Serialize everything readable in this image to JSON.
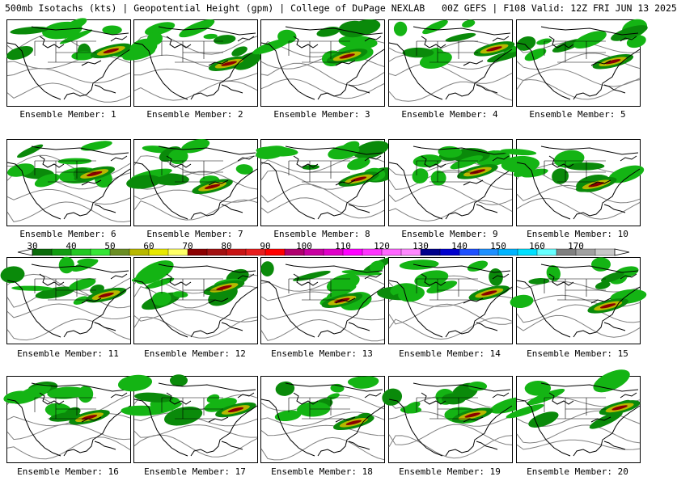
{
  "header": {
    "title": "500mb Isotachs (kts) | Geopotential Height (gpm) | College of DuPage NEXLAB   00Z GEFS | F108 Valid: 12Z FRI JUN 13 2025"
  },
  "panels": [
    {
      "label": "Ensemble Member: 1"
    },
    {
      "label": "Ensemble Member: 2"
    },
    {
      "label": "Ensemble Member: 3"
    },
    {
      "label": "Ensemble Member: 4"
    },
    {
      "label": "Ensemble Member: 5"
    },
    {
      "label": "Ensemble Member: 6"
    },
    {
      "label": "Ensemble Member: 7"
    },
    {
      "label": "Ensemble Member: 8"
    },
    {
      "label": "Ensemble Member: 9"
    },
    {
      "label": "Ensemble Member: 10"
    },
    {
      "label": "Ensemble Member: 11"
    },
    {
      "label": "Ensemble Member: 12"
    },
    {
      "label": "Ensemble Member: 13"
    },
    {
      "label": "Ensemble Member: 14"
    },
    {
      "label": "Ensemble Member: 15"
    },
    {
      "label": "Ensemble Member: 16"
    },
    {
      "label": "Ensemble Member: 17"
    },
    {
      "label": "Ensemble Member: 18"
    },
    {
      "label": "Ensemble Member: 19"
    },
    {
      "label": "Ensemble Member: 20"
    }
  ],
  "colorbar": {
    "labels": [
      "30",
      "40",
      "50",
      "60",
      "70",
      "80",
      "90",
      "100",
      "110",
      "120",
      "130",
      "140",
      "150",
      "160",
      "170"
    ],
    "colors": [
      "#0b6b0b",
      "#129c12",
      "#22c822",
      "#36e636",
      "#6b8e23",
      "#b8b800",
      "#e8e800",
      "#ffff66",
      "#8b0000",
      "#a31212",
      "#c81414",
      "#e81e1e",
      "#ff0000",
      "#b0006e",
      "#c800a0",
      "#e000c8",
      "#ff00ff",
      "#ff33ff",
      "#ff66ff",
      "#ff88ff",
      "#00008b",
      "#0000cd",
      "#1e50ff",
      "#1e90ff",
      "#00b4ff",
      "#00e0ff",
      "#66ffff",
      "#808080",
      "#a0a0a0",
      "#c8c8c8"
    ]
  },
  "map_colors": {
    "wind_low": "#14b414",
    "wind_mid": "#0a8a0a",
    "wind_jet": "#b8b800",
    "wind_core": "#8b0000",
    "height_contour": "#808080",
    "coastline": "#000000"
  }
}
